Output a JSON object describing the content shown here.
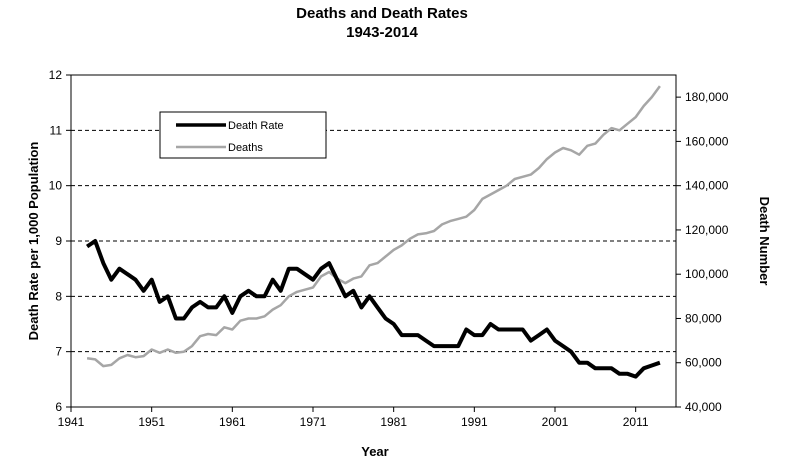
{
  "chart_data": {
    "type": "line",
    "title": "Deaths and Death Rates",
    "subtitle": "1943-2014",
    "xlabel": "Year",
    "ylabel": "Death Rate per 1,000 Population",
    "y2label": "Death Number",
    "xlim": [
      1941,
      2016
    ],
    "ylim": [
      6,
      12
    ],
    "y2lim": [
      40000,
      190000
    ],
    "x_ticks": [
      "1941",
      "1951",
      "1961",
      "1971",
      "1981",
      "1991",
      "2001",
      "2011"
    ],
    "y_ticks": [
      "6",
      "7",
      "8",
      "9",
      "10",
      "11",
      "12"
    ],
    "y2_ticks": [
      "40,000",
      "60,000",
      "80,000",
      "100,000",
      "120,000",
      "140,000",
      "160,000",
      "180,000"
    ],
    "grid": "horizontal dashed",
    "legend_position": "top-left",
    "x": [
      1943,
      1944,
      1945,
      1946,
      1947,
      1948,
      1949,
      1950,
      1951,
      1952,
      1953,
      1954,
      1955,
      1956,
      1957,
      1958,
      1959,
      1960,
      1961,
      1962,
      1963,
      1964,
      1965,
      1966,
      1967,
      1968,
      1969,
      1970,
      1971,
      1972,
      1973,
      1974,
      1975,
      1976,
      1977,
      1978,
      1979,
      1980,
      1981,
      1982,
      1983,
      1984,
      1985,
      1986,
      1987,
      1988,
      1989,
      1990,
      1991,
      1992,
      1993,
      1994,
      1995,
      1996,
      1997,
      1998,
      1999,
      2000,
      2001,
      2002,
      2003,
      2004,
      2005,
      2006,
      2007,
      2008,
      2009,
      2010,
      2011,
      2012,
      2013,
      2014
    ],
    "series": [
      {
        "name": "Death Rate",
        "axis": "left",
        "color": "#000000",
        "values": [
          8.9,
          9.0,
          8.6,
          8.3,
          8.5,
          8.4,
          8.3,
          8.1,
          8.3,
          7.9,
          8.0,
          7.6,
          7.6,
          7.8,
          7.9,
          7.8,
          7.8,
          8.0,
          7.7,
          8.0,
          8.1,
          8.0,
          8.0,
          8.3,
          8.1,
          8.5,
          8.5,
          8.4,
          8.3,
          8.5,
          8.6,
          8.3,
          8.0,
          8.1,
          7.8,
          8.0,
          7.8,
          7.6,
          7.5,
          7.3,
          7.3,
          7.3,
          7.2,
          7.1,
          7.1,
          7.1,
          7.1,
          7.4,
          7.3,
          7.3,
          7.5,
          7.4,
          7.4,
          7.4,
          7.4,
          7.2,
          7.3,
          7.4,
          7.2,
          7.1,
          7.0,
          6.8,
          6.8,
          6.7,
          6.7,
          6.7,
          6.6,
          6.6,
          6.55,
          6.7,
          6.75,
          6.8
        ]
      },
      {
        "name": "Deaths",
        "axis": "right",
        "color": "#a6a6a6",
        "values": [
          62000,
          61500,
          58500,
          59000,
          62000,
          63500,
          62500,
          63000,
          66000,
          64500,
          66000,
          64500,
          65000,
          67500,
          72000,
          73000,
          72500,
          76000,
          75000,
          79000,
          80000,
          80000,
          81000,
          84000,
          86000,
          90000,
          92000,
          93000,
          94000,
          99000,
          101000,
          98000,
          96000,
          98000,
          99000,
          104000,
          105000,
          108000,
          111000,
          113000,
          116000,
          118000,
          118500,
          119500,
          122500,
          124000,
          125000,
          126000,
          129000,
          134000,
          136000,
          138000,
          140000,
          143000,
          144000,
          145000,
          148000,
          152000,
          155000,
          157000,
          156000,
          154000,
          158000,
          159000,
          163000,
          166000,
          165000,
          168000,
          171000,
          176000,
          180000,
          185000
        ]
      }
    ]
  }
}
